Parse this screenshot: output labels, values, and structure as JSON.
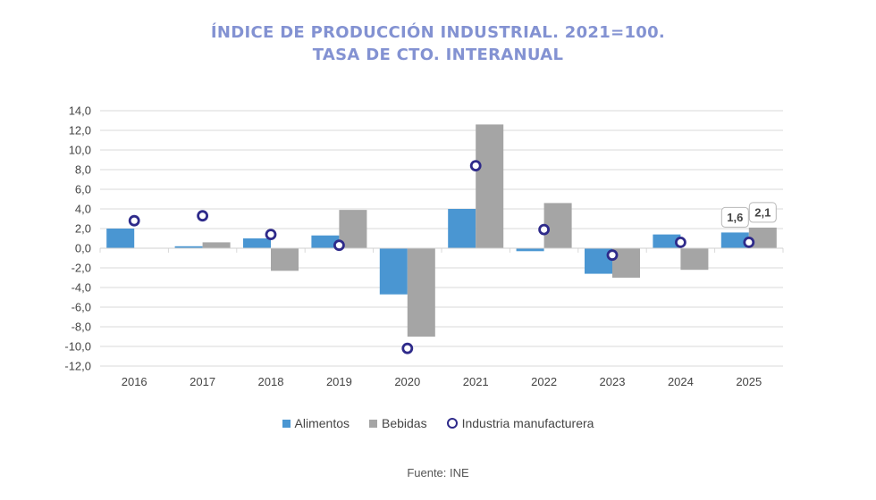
{
  "chart_data": {
    "type": "bar",
    "title_line1": "ÍNDICE DE PRODUCCIÓN INDUSTRIAL. 2021=100.",
    "title_line2": "TASA DE CTO. INTERANUAL",
    "categories": [
      "2016",
      "2017",
      "2018",
      "2019",
      "2020",
      "2021",
      "2022",
      "2023",
      "2024",
      "2025"
    ],
    "series": [
      {
        "name": "Alimentos",
        "kind": "bar",
        "color": "#4a96d2",
        "values": [
          2.0,
          0.2,
          1.0,
          1.3,
          -4.7,
          4.0,
          -0.3,
          -2.6,
          1.4,
          1.6
        ]
      },
      {
        "name": "Bebidas",
        "kind": "bar",
        "color": "#a5a5a5",
        "values": [
          0.0,
          0.6,
          -2.3,
          3.9,
          -9.0,
          12.6,
          4.6,
          -3.0,
          -2.2,
          2.1
        ]
      },
      {
        "name": "Industria manufacturera",
        "kind": "marker",
        "color": "#2e2a8a",
        "values": [
          2.8,
          3.3,
          1.4,
          0.3,
          -10.2,
          8.4,
          1.9,
          -0.7,
          0.6,
          0.6
        ]
      }
    ],
    "yticks": [
      "14,0",
      "12,0",
      "10,0",
      "8,0",
      "6,0",
      "4,0",
      "2,0",
      "0,0",
      "-2,0",
      "-4,0",
      "-6,0",
      "-8,0",
      "-10,0",
      "-12,0"
    ],
    "ylim": [
      -12,
      14
    ],
    "grid": true,
    "legend_position": "bottom",
    "data_labels": [
      {
        "category": "2025",
        "series": "Alimentos",
        "text": "1,6"
      },
      {
        "category": "2025",
        "series": "Bebidas",
        "text": "2,1"
      }
    ]
  },
  "source": "Fuente: INE"
}
